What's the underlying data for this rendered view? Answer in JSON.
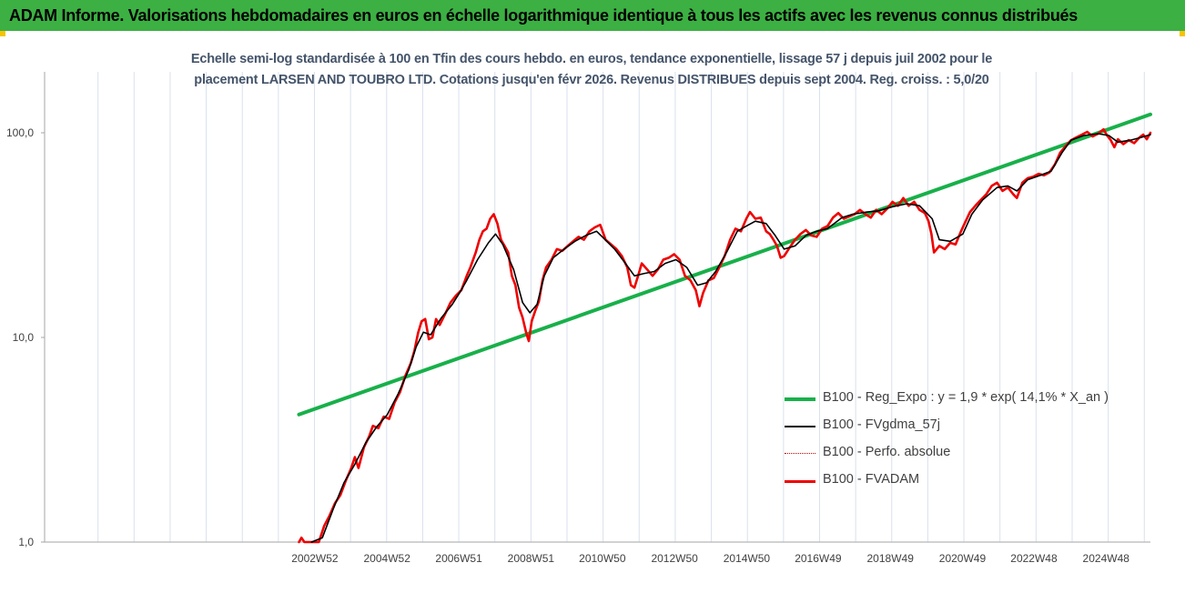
{
  "header": {
    "banner": "ADAM Informe. Valorisations hebdomadaires en euros en échelle logarithmique identique à tous les actifs avec les revenus connus distribués"
  },
  "colors": {
    "banner_bg": "#3cb043",
    "regression": "#18b04a",
    "smooth": "#000000",
    "perf": "#c00000",
    "fvadam": "#ee0000"
  },
  "chart_data": {
    "type": "line",
    "title_lines": [
      "Echelle semi-log standardisée à 100 en Tfin des cours hebdo. en euros, tendance exponentielle, lissage 57 j depuis juil 2002 pour le",
      "placement LARSEN AND TOUBRO LTD. Cotations jusqu'en févr 2026. Revenus DISTRIBUES depuis sept 2004. Reg. croiss. : 5,0/20"
    ],
    "y_scale": "log",
    "ylim": [
      1,
      150
    ],
    "y_ticks": [
      {
        "value": 1,
        "label": "1,0"
      },
      {
        "value": 10,
        "label": "10,0"
      },
      {
        "value": 100,
        "label": "100,0"
      }
    ],
    "xlim": [
      1995.5,
      2026.15
    ],
    "x_ticks": [
      {
        "year": 2002.99,
        "label": "2002W52"
      },
      {
        "year": 2004.99,
        "label": "2004W52"
      },
      {
        "year": 2006.98,
        "label": "2006W51"
      },
      {
        "year": 2008.98,
        "label": "2008W51"
      },
      {
        "year": 2010.96,
        "label": "2010W50"
      },
      {
        "year": 2012.96,
        "label": "2012W50"
      },
      {
        "year": 2014.96,
        "label": "2014W50"
      },
      {
        "year": 2016.94,
        "label": "2016W49"
      },
      {
        "year": 2018.94,
        "label": "2018W49"
      },
      {
        "year": 2020.94,
        "label": "2020W49"
      },
      {
        "year": 2022.92,
        "label": "2022W48"
      },
      {
        "year": 2024.92,
        "label": "2024W48"
      }
    ],
    "grid_x": true,
    "legend_position": "bottom-right",
    "series": [
      {
        "name": "B100 - Reg_Expo : y = 1,9 * exp( 14,1% *  X_an )",
        "style": "regression",
        "points": [
          [
            2002.55,
            4.2
          ],
          [
            2026.15,
            123
          ]
        ]
      },
      {
        "name": "B100 - FVgdma_57j",
        "style": "smooth",
        "points": [
          [
            2002.9,
            0.85
          ],
          [
            2003.2,
            1.05
          ],
          [
            2003.5,
            1.45
          ],
          [
            2003.8,
            1.95
          ],
          [
            2004.1,
            2.4
          ],
          [
            2004.4,
            3.05
          ],
          [
            2004.7,
            3.65
          ],
          [
            2005.0,
            4.2
          ],
          [
            2005.3,
            5.3
          ],
          [
            2005.6,
            7.0
          ],
          [
            2005.8,
            9.0
          ],
          [
            2006.0,
            10.6
          ],
          [
            2006.2,
            10.3
          ],
          [
            2006.5,
            12.5
          ],
          [
            2006.8,
            14.5
          ],
          [
            2007.0,
            16.5
          ],
          [
            2007.2,
            19.0
          ],
          [
            2007.5,
            24.0
          ],
          [
            2007.8,
            29.0
          ],
          [
            2008.0,
            32.0
          ],
          [
            2008.2,
            28.5
          ],
          [
            2008.5,
            21.5
          ],
          [
            2008.75,
            14.8
          ],
          [
            2008.95,
            13.2
          ],
          [
            2009.15,
            14.5
          ],
          [
            2009.35,
            20.0
          ],
          [
            2009.6,
            24.5
          ],
          [
            2009.9,
            27.0
          ],
          [
            2010.2,
            29.5
          ],
          [
            2010.5,
            31.5
          ],
          [
            2010.8,
            33.0
          ],
          [
            2011.0,
            30.5
          ],
          [
            2011.3,
            27.0
          ],
          [
            2011.6,
            23.0
          ],
          [
            2011.85,
            20.0
          ],
          [
            2012.1,
            20.5
          ],
          [
            2012.4,
            21.0
          ],
          [
            2012.7,
            23.0
          ],
          [
            2013.0,
            24.0
          ],
          [
            2013.3,
            22.0
          ],
          [
            2013.6,
            18.0
          ],
          [
            2013.85,
            18.5
          ],
          [
            2014.1,
            21.0
          ],
          [
            2014.4,
            26.0
          ],
          [
            2014.7,
            33.0
          ],
          [
            2014.95,
            35.0
          ],
          [
            2015.2,
            37.0
          ],
          [
            2015.5,
            36.0
          ],
          [
            2015.75,
            31.5
          ],
          [
            2016.0,
            27.0
          ],
          [
            2016.3,
            28.0
          ],
          [
            2016.6,
            31.5
          ],
          [
            2016.9,
            33.0
          ],
          [
            2017.2,
            34.0
          ],
          [
            2017.6,
            38.5
          ],
          [
            2017.9,
            40.0
          ],
          [
            2018.3,
            41.0
          ],
          [
            2018.6,
            41.5
          ],
          [
            2019.0,
            43.5
          ],
          [
            2019.4,
            45.0
          ],
          [
            2019.75,
            44.0
          ],
          [
            2020.1,
            38.0
          ],
          [
            2020.3,
            30.0
          ],
          [
            2020.6,
            29.5
          ],
          [
            2020.95,
            32.0
          ],
          [
            2021.2,
            40.0
          ],
          [
            2021.5,
            47.0
          ],
          [
            2021.9,
            54.0
          ],
          [
            2022.2,
            55.0
          ],
          [
            2022.45,
            52.0
          ],
          [
            2022.75,
            59.0
          ],
          [
            2023.1,
            62.0
          ],
          [
            2023.4,
            65.0
          ],
          [
            2023.7,
            80.0
          ],
          [
            2023.95,
            92.0
          ],
          [
            2024.3,
            97.0
          ],
          [
            2024.7,
            99.0
          ],
          [
            2025.0,
            97.0
          ],
          [
            2025.25,
            90.0
          ],
          [
            2025.6,
            92.0
          ],
          [
            2025.9,
            95.0
          ],
          [
            2026.15,
            98.0
          ]
        ]
      },
      {
        "name": "B100 - Perfo. absolue",
        "style": "perf",
        "points": []
      },
      {
        "name": "B100 - FVADAM",
        "style": "fvadam",
        "points": [
          [
            2002.55,
            0.9
          ],
          [
            2002.62,
            1.05
          ],
          [
            2002.7,
            0.9
          ],
          [
            2002.8,
            1.0
          ],
          [
            2002.9,
            0.85
          ],
          [
            2003.1,
            1.0
          ],
          [
            2003.25,
            1.2
          ],
          [
            2003.4,
            1.35
          ],
          [
            2003.55,
            1.55
          ],
          [
            2003.7,
            1.7
          ],
          [
            2003.85,
            2.0
          ],
          [
            2004.0,
            2.3
          ],
          [
            2004.1,
            2.6
          ],
          [
            2004.2,
            2.3
          ],
          [
            2004.35,
            2.9
          ],
          [
            2004.5,
            3.3
          ],
          [
            2004.6,
            3.7
          ],
          [
            2004.75,
            3.6
          ],
          [
            2004.9,
            4.1
          ],
          [
            2005.05,
            4.0
          ],
          [
            2005.2,
            4.8
          ],
          [
            2005.35,
            5.4
          ],
          [
            2005.5,
            6.5
          ],
          [
            2005.65,
            7.5
          ],
          [
            2005.75,
            8.6
          ],
          [
            2005.85,
            10.5
          ],
          [
            2005.95,
            12.0
          ],
          [
            2006.05,
            12.3
          ],
          [
            2006.15,
            9.8
          ],
          [
            2006.25,
            10.0
          ],
          [
            2006.35,
            12.3
          ],
          [
            2006.45,
            11.5
          ],
          [
            2006.6,
            13.0
          ],
          [
            2006.75,
            14.8
          ],
          [
            2006.9,
            16.0
          ],
          [
            2007.05,
            17.0
          ],
          [
            2007.2,
            20.0
          ],
          [
            2007.3,
            22.0
          ],
          [
            2007.45,
            26.0
          ],
          [
            2007.55,
            30.0
          ],
          [
            2007.65,
            33.0
          ],
          [
            2007.75,
            34.0
          ],
          [
            2007.85,
            38.0
          ],
          [
            2007.95,
            40.0
          ],
          [
            2008.05,
            36.0
          ],
          [
            2008.15,
            30.0
          ],
          [
            2008.25,
            28.0
          ],
          [
            2008.35,
            26.0
          ],
          [
            2008.45,
            20.0
          ],
          [
            2008.55,
            18.0
          ],
          [
            2008.65,
            14.0
          ],
          [
            2008.75,
            12.5
          ],
          [
            2008.85,
            10.5
          ],
          [
            2008.92,
            9.6
          ],
          [
            2009.0,
            12.0
          ],
          [
            2009.1,
            13.5
          ],
          [
            2009.2,
            15.0
          ],
          [
            2009.3,
            19.0
          ],
          [
            2009.4,
            22.0
          ],
          [
            2009.55,
            24.0
          ],
          [
            2009.7,
            27.0
          ],
          [
            2009.85,
            26.5
          ],
          [
            2010.0,
            28.0
          ],
          [
            2010.15,
            29.5
          ],
          [
            2010.3,
            31.0
          ],
          [
            2010.45,
            30.0
          ],
          [
            2010.6,
            33.0
          ],
          [
            2010.75,
            34.5
          ],
          [
            2010.9,
            35.5
          ],
          [
            2011.05,
            30.0
          ],
          [
            2011.2,
            28.5
          ],
          [
            2011.35,
            27.0
          ],
          [
            2011.5,
            25.0
          ],
          [
            2011.65,
            22.0
          ],
          [
            2011.75,
            18.0
          ],
          [
            2011.85,
            17.5
          ],
          [
            2011.95,
            20.0
          ],
          [
            2012.05,
            23.0
          ],
          [
            2012.2,
            21.5
          ],
          [
            2012.35,
            20.0
          ],
          [
            2012.5,
            21.5
          ],
          [
            2012.65,
            24.0
          ],
          [
            2012.8,
            24.5
          ],
          [
            2012.95,
            25.5
          ],
          [
            2013.1,
            24.0
          ],
          [
            2013.25,
            20.0
          ],
          [
            2013.4,
            19.0
          ],
          [
            2013.55,
            17.0
          ],
          [
            2013.65,
            14.2
          ],
          [
            2013.75,
            16.5
          ],
          [
            2013.9,
            19.0
          ],
          [
            2014.05,
            19.5
          ],
          [
            2014.2,
            22.0
          ],
          [
            2014.35,
            25.0
          ],
          [
            2014.5,
            30.0
          ],
          [
            2014.65,
            34.0
          ],
          [
            2014.8,
            33.0
          ],
          [
            2014.95,
            38.0
          ],
          [
            2015.05,
            41.0
          ],
          [
            2015.2,
            38.0
          ],
          [
            2015.35,
            38.5
          ],
          [
            2015.5,
            33.0
          ],
          [
            2015.6,
            32.0
          ],
          [
            2015.7,
            30.0
          ],
          [
            2015.8,
            28.0
          ],
          [
            2015.9,
            24.5
          ],
          [
            2016.0,
            25.0
          ],
          [
            2016.15,
            27.5
          ],
          [
            2016.3,
            30.0
          ],
          [
            2016.45,
            32.0
          ],
          [
            2016.6,
            33.5
          ],
          [
            2016.75,
            31.5
          ],
          [
            2016.9,
            31.0
          ],
          [
            2017.05,
            34.0
          ],
          [
            2017.2,
            35.0
          ],
          [
            2017.35,
            38.5
          ],
          [
            2017.5,
            40.5
          ],
          [
            2017.65,
            38.0
          ],
          [
            2017.8,
            39.0
          ],
          [
            2017.95,
            40.0
          ],
          [
            2018.1,
            42.0
          ],
          [
            2018.25,
            40.0
          ],
          [
            2018.4,
            38.5
          ],
          [
            2018.55,
            42.0
          ],
          [
            2018.7,
            40.0
          ],
          [
            2018.85,
            42.5
          ],
          [
            2019.0,
            46.0
          ],
          [
            2019.15,
            44.0
          ],
          [
            2019.3,
            48.0
          ],
          [
            2019.45,
            44.0
          ],
          [
            2019.6,
            46.0
          ],
          [
            2019.75,
            42.0
          ],
          [
            2019.9,
            40.5
          ],
          [
            2020.0,
            37.0
          ],
          [
            2020.08,
            32.0
          ],
          [
            2020.15,
            26.0
          ],
          [
            2020.3,
            28.0
          ],
          [
            2020.45,
            27.0
          ],
          [
            2020.6,
            29.0
          ],
          [
            2020.75,
            28.5
          ],
          [
            2020.9,
            33.0
          ],
          [
            2021.0,
            36.0
          ],
          [
            2021.15,
            41.0
          ],
          [
            2021.3,
            44.0
          ],
          [
            2021.45,
            47.0
          ],
          [
            2021.6,
            50.0
          ],
          [
            2021.75,
            55.0
          ],
          [
            2021.9,
            57.0
          ],
          [
            2022.05,
            52.0
          ],
          [
            2022.2,
            54.0
          ],
          [
            2022.35,
            50.0
          ],
          [
            2022.45,
            48.0
          ],
          [
            2022.6,
            57.0
          ],
          [
            2022.75,
            60.0
          ],
          [
            2022.9,
            61.0
          ],
          [
            2023.05,
            63.0
          ],
          [
            2023.2,
            62.0
          ],
          [
            2023.35,
            64.0
          ],
          [
            2023.5,
            70.0
          ],
          [
            2023.65,
            80.0
          ],
          [
            2023.8,
            86.0
          ],
          [
            2023.95,
            92.0
          ],
          [
            2024.1,
            95.0
          ],
          [
            2024.25,
            98.0
          ],
          [
            2024.4,
            101.0
          ],
          [
            2024.55,
            96.0
          ],
          [
            2024.7,
            99.0
          ],
          [
            2024.85,
            104.0
          ],
          [
            2024.95,
            97.0
          ],
          [
            2025.05,
            92.0
          ],
          [
            2025.15,
            85.0
          ],
          [
            2025.25,
            93.0
          ],
          [
            2025.4,
            88.0
          ],
          [
            2025.55,
            92.0
          ],
          [
            2025.7,
            89.0
          ],
          [
            2025.85,
            95.0
          ],
          [
            2025.95,
            98.0
          ],
          [
            2026.05,
            93.0
          ],
          [
            2026.15,
            100.0
          ]
        ]
      }
    ]
  }
}
